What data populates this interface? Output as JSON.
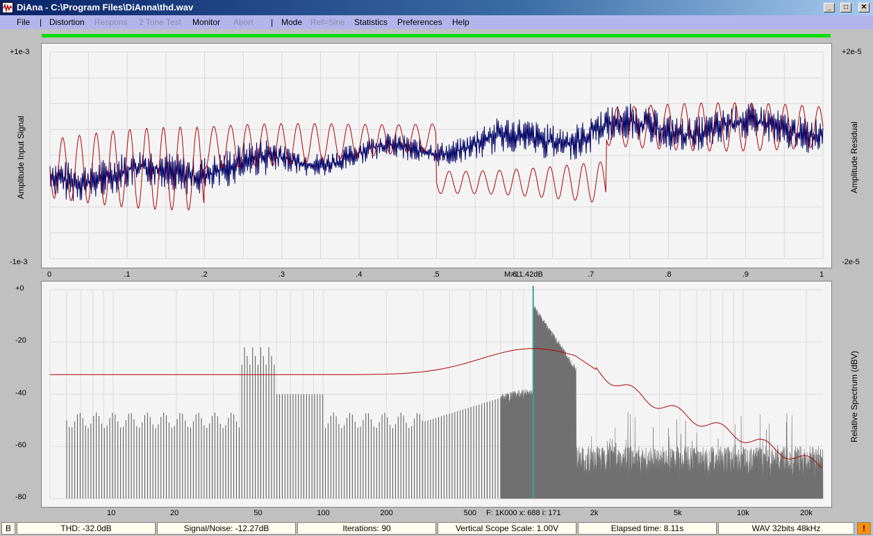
{
  "window": {
    "title": "DiAna - C:\\Program Files\\DiAnna\\thd.wav",
    "min_glyph": "_",
    "max_glyph": "□",
    "close_glyph": "✕"
  },
  "menu": {
    "file": "File",
    "sep1": "|",
    "distortion": "Distortion",
    "respons": "Respons",
    "two_tone": "2 Tone Test",
    "monitor": "Monitor",
    "abort": "Abort",
    "sep2": "|",
    "mode": "Mode",
    "ref_sine": "Ref=Sine",
    "statistics": "Statistics",
    "preferences": "Preferences",
    "help": "Help"
  },
  "scope": {
    "left_top": "+1e-3",
    "left_bottom": "-1e-3",
    "right_top": "+2e-5",
    "right_bottom": "-2e-5",
    "left_axis_label": "Amplitude Input Signal",
    "right_axis_label": "Amplitude Residual",
    "x_ticks": [
      "0",
      ".1",
      ".2",
      ".3",
      ".4",
      ".5",
      ".6",
      ".7",
      ".8",
      ".9",
      "1"
    ],
    "marker_readout": "M=11.42dB",
    "colors": {
      "input": "#000066",
      "residual": "#b00000",
      "grid": "#d8d8d8"
    }
  },
  "spectrum": {
    "y_ticks": [
      "+0",
      "-20",
      "-40",
      "-60",
      "-80"
    ],
    "right_axis_label": "Relative Spectrum (dBV)",
    "x_ticks": [
      "10",
      "20",
      "50",
      "100",
      "200",
      "500",
      "2k",
      "5k",
      "10k",
      "20k"
    ],
    "cursor_readout": "F: 1K000 x: 688 i: 171",
    "colors": {
      "bars": "#707070",
      "curve": "#b00000",
      "cursor": "#40a0a0"
    }
  },
  "status": {
    "mode_flag": "B",
    "thd": "THD:  -32.0dB",
    "snr": "Signal/Noise: -12.27dB",
    "iterations": "Iterations: 90",
    "vscale": "Vertical Scope Scale: 1.00V",
    "elapsed": "Elapsed time: 8.11s",
    "format": "WAV 32bits 48kHz",
    "alert": "!"
  }
}
